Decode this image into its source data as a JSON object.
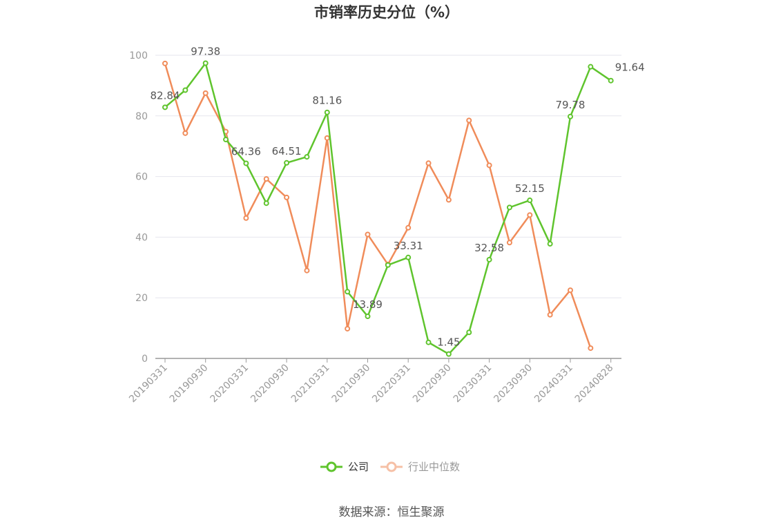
{
  "chart_data": {
    "type": "line",
    "title": "市销率历史分位（%）",
    "source": "数据来源：恒生聚源",
    "ylim": [
      0,
      100
    ],
    "yticks": [
      "0",
      "20",
      "40",
      "60",
      "80",
      "100"
    ],
    "x_tick_labels": [
      "20190331",
      "20190930",
      "20200331",
      "20200930",
      "20210331",
      "20210930",
      "20220331",
      "20220930",
      "20230331",
      "20230930",
      "20240331",
      "20240828"
    ],
    "x": [
      "20190331",
      "20190630",
      "20190930",
      "20191231",
      "20200331",
      "20200630",
      "20200930",
      "20201231",
      "20210331",
      "20210630",
      "20210930",
      "20211231",
      "20220331",
      "20220630",
      "20220930",
      "20221231",
      "20230331",
      "20230630",
      "20230930",
      "20231231",
      "20240331",
      "20240630",
      "20240828"
    ],
    "legend_position": "bottom",
    "grid": true,
    "series": [
      {
        "name": "公司",
        "color": "#5fc42d",
        "values": [
          82.84,
          88.5,
          97.38,
          72.2,
          64.36,
          51.2,
          64.51,
          66.5,
          81.16,
          22.0,
          13.89,
          30.8,
          33.31,
          5.3,
          1.45,
          8.6,
          32.58,
          49.8,
          52.15,
          37.8,
          79.78,
          96.2,
          91.64
        ],
        "labels": [
          "82.84",
          "",
          "97.38",
          "",
          "64.36",
          "",
          "64.51",
          "",
          "81.16",
          "",
          "13.89",
          "",
          "33.31",
          "",
          "1.45",
          "",
          "32.58",
          "",
          "52.15",
          "",
          "79.78",
          "",
          "91.64"
        ]
      },
      {
        "name": "行业中位数",
        "color": "#f08c5a",
        "values": [
          97.3,
          74.3,
          87.5,
          74.8,
          46.3,
          59.2,
          53.1,
          29.0,
          72.7,
          9.8,
          40.9,
          31.0,
          43.1,
          64.4,
          52.3,
          78.5,
          63.7,
          38.2,
          47.3,
          14.4,
          22.5,
          3.4,
          null
        ]
      }
    ]
  }
}
